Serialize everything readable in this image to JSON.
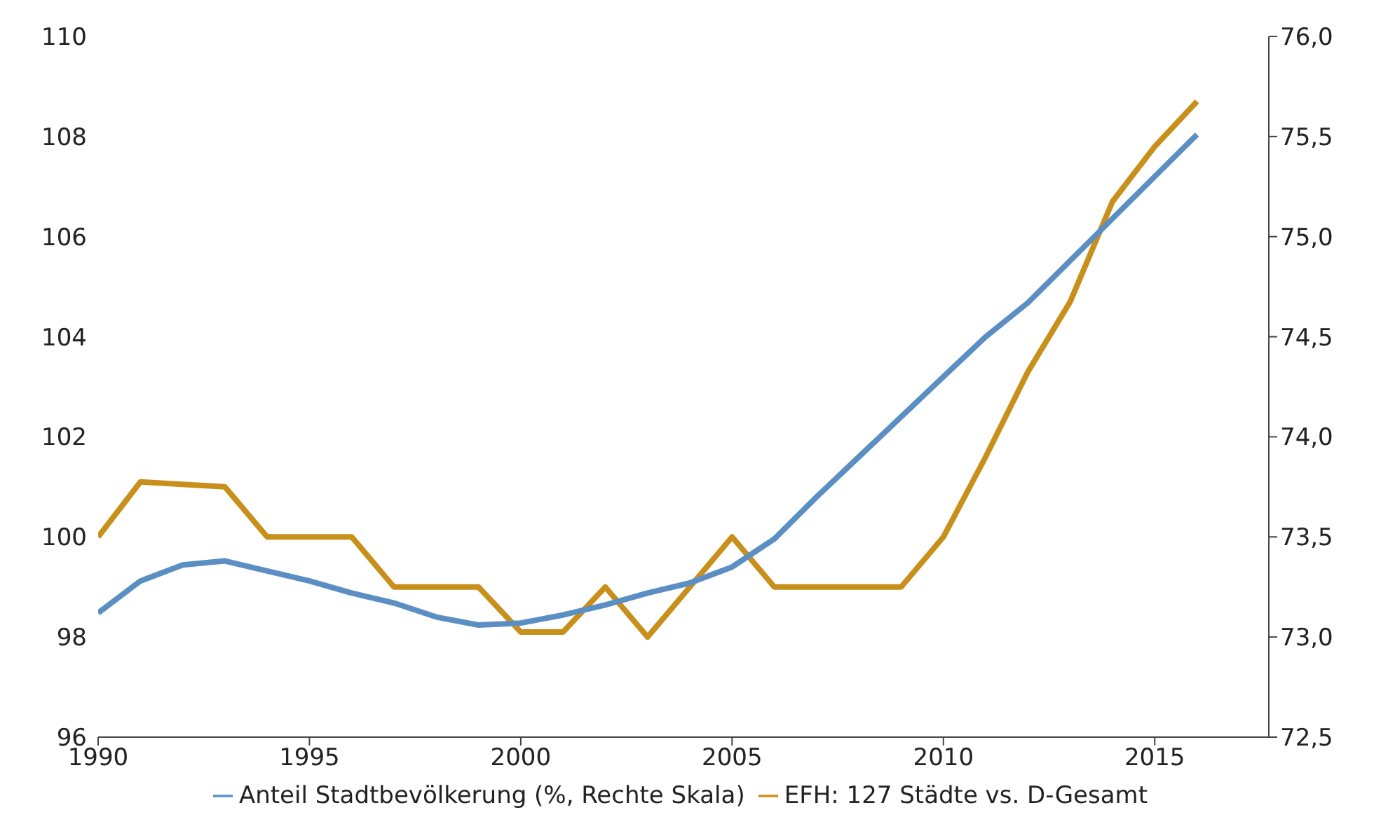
{
  "chart_data": {
    "type": "line",
    "x": [
      1990,
      1991,
      1992,
      1993,
      1994,
      1995,
      1996,
      1997,
      1998,
      1999,
      2000,
      2001,
      2002,
      2003,
      2004,
      2005,
      2006,
      2007,
      2008,
      2009,
      2010,
      2011,
      2012,
      2013,
      2014,
      2015,
      2016
    ],
    "series": [
      {
        "name": "EFH: 127 Städte vs. D-Gesamt",
        "color": "#c8901a",
        "values": [
          100,
          101.1,
          101.05,
          101,
          100,
          100,
          100,
          99,
          99,
          99,
          98.1,
          98.1,
          99,
          98,
          99,
          100,
          99,
          99,
          99,
          99,
          100,
          101.6,
          103.3,
          104.7,
          106.7,
          107.8,
          108.7
        ]
      },
      {
        "name": "Anteil Stadtbevölkerung (%, Rechte Skala)",
        "color": "#5b8fc4",
        "axis": "y2",
        "values": [
          73.12,
          73.28,
          73.36,
          73.38,
          73.33,
          73.28,
          73.22,
          73.17,
          73.1,
          73.06,
          73.07,
          73.11,
          73.16,
          73.22,
          73.27,
          73.35,
          73.49,
          73.7,
          73.9,
          74.1,
          74.3,
          74.5,
          74.67,
          74.88,
          75.09,
          75.3,
          75.51
        ]
      }
    ],
    "xlim": [
      1990,
      2017.7
    ],
    "xticks": [
      1990,
      1995,
      2000,
      2005,
      2010,
      2015
    ],
    "ylim": [
      96,
      110
    ],
    "yticks": [
      96,
      98,
      100,
      102,
      104,
      106,
      108,
      110
    ],
    "y2lim": [
      72.5,
      76
    ],
    "y2ticks": [
      {
        "value": 72.5,
        "label": "72,5"
      },
      {
        "value": 73,
        "label": "73,0"
      },
      {
        "value": 73.5,
        "label": "73,5"
      },
      {
        "value": 74,
        "label": "74,0"
      },
      {
        "value": 74.5,
        "label": "74,5"
      },
      {
        "value": 75,
        "label": "75,0"
      },
      {
        "value": 75.5,
        "label": "75,5"
      },
      {
        "value": 76,
        "label": "76,0"
      }
    ],
    "legend": "bottom",
    "grid": false
  }
}
